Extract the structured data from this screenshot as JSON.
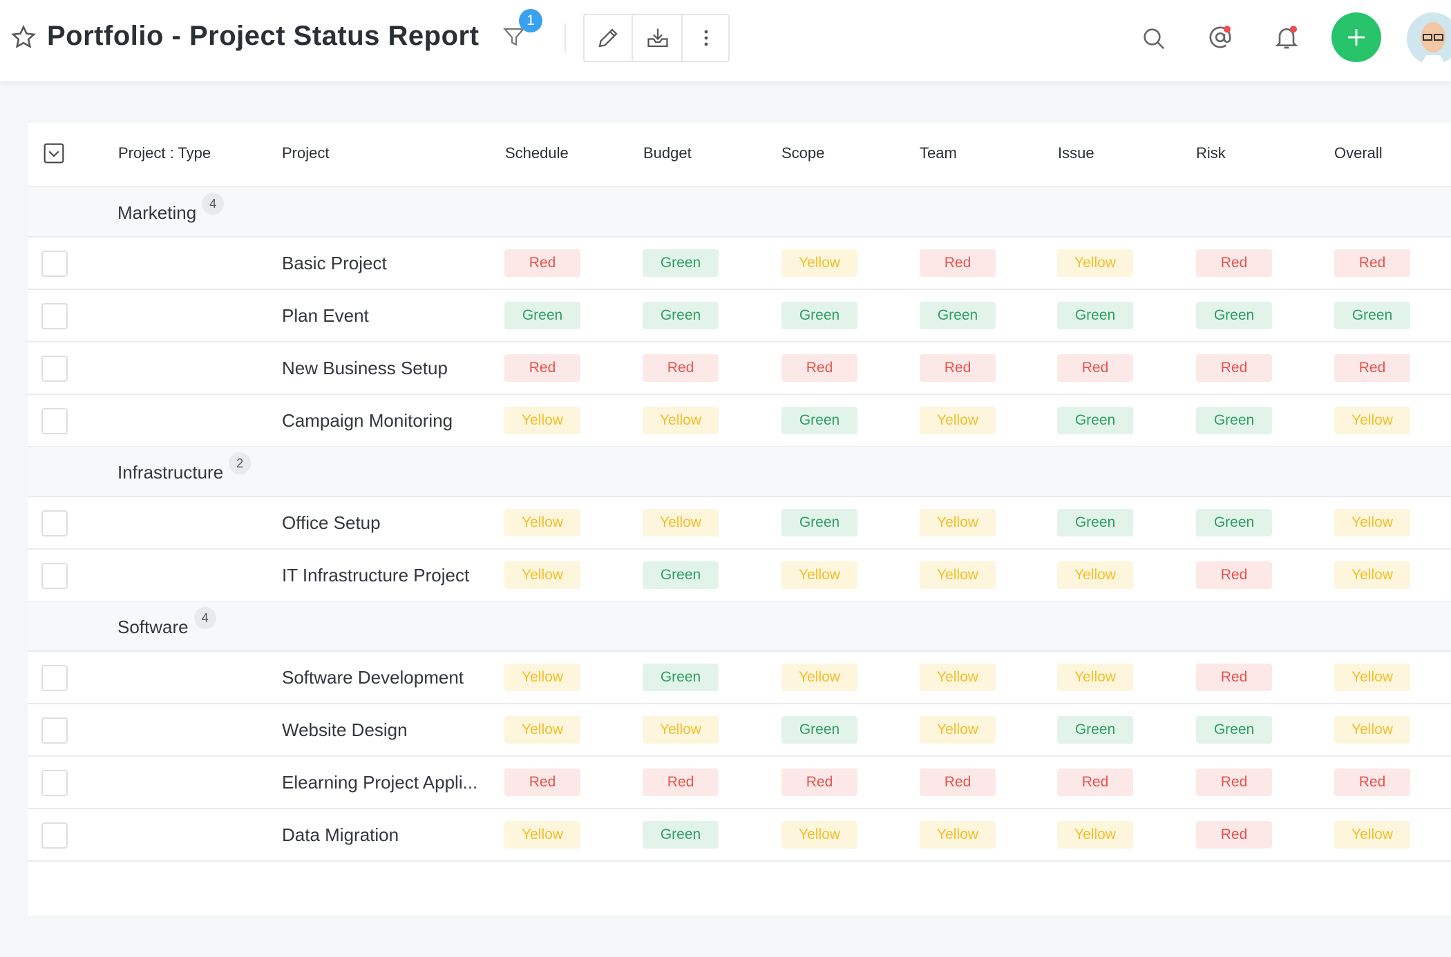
{
  "header": {
    "title": "Portfolio - Project Status Report",
    "filter_count": "1"
  },
  "table": {
    "columns": [
      "Project : Type",
      "Project",
      "Schedule",
      "Budget",
      "Scope",
      "Team",
      "Issue",
      "Risk",
      "Overall"
    ],
    "groups": [
      {
        "name": "Marketing",
        "count": 4,
        "rows": [
          {
            "project": "Basic Project",
            "statuses": [
              "Red",
              "Green",
              "Yellow",
              "Red",
              "Yellow",
              "Red",
              "Red"
            ]
          },
          {
            "project": "Plan Event",
            "statuses": [
              "Green",
              "Green",
              "Green",
              "Green",
              "Green",
              "Green",
              "Green"
            ]
          },
          {
            "project": "New Business Setup",
            "statuses": [
              "Red",
              "Red",
              "Red",
              "Red",
              "Red",
              "Red",
              "Red"
            ]
          },
          {
            "project": "Campaign Monitoring",
            "statuses": [
              "Yellow",
              "Yellow",
              "Green",
              "Yellow",
              "Green",
              "Green",
              "Yellow"
            ]
          }
        ]
      },
      {
        "name": "Infrastructure",
        "count": 2,
        "rows": [
          {
            "project": "Office Setup",
            "statuses": [
              "Yellow",
              "Yellow",
              "Green",
              "Yellow",
              "Green",
              "Green",
              "Yellow"
            ]
          },
          {
            "project": "IT Infrastructure Project",
            "statuses": [
              "Yellow",
              "Green",
              "Yellow",
              "Yellow",
              "Yellow",
              "Red",
              "Yellow"
            ]
          }
        ]
      },
      {
        "name": "Software",
        "count": 4,
        "rows": [
          {
            "project": "Software Development",
            "statuses": [
              "Yellow",
              "Green",
              "Yellow",
              "Yellow",
              "Yellow",
              "Red",
              "Yellow"
            ]
          },
          {
            "project": "Website Design",
            "statuses": [
              "Yellow",
              "Yellow",
              "Green",
              "Yellow",
              "Green",
              "Green",
              "Yellow"
            ]
          },
          {
            "project": "Elearning Project Appli...",
            "statuses": [
              "Red",
              "Red",
              "Red",
              "Red",
              "Red",
              "Red",
              "Red"
            ]
          },
          {
            "project": "Data Migration",
            "statuses": [
              "Yellow",
              "Green",
              "Yellow",
              "Yellow",
              "Yellow",
              "Red",
              "Yellow"
            ]
          }
        ]
      }
    ]
  }
}
